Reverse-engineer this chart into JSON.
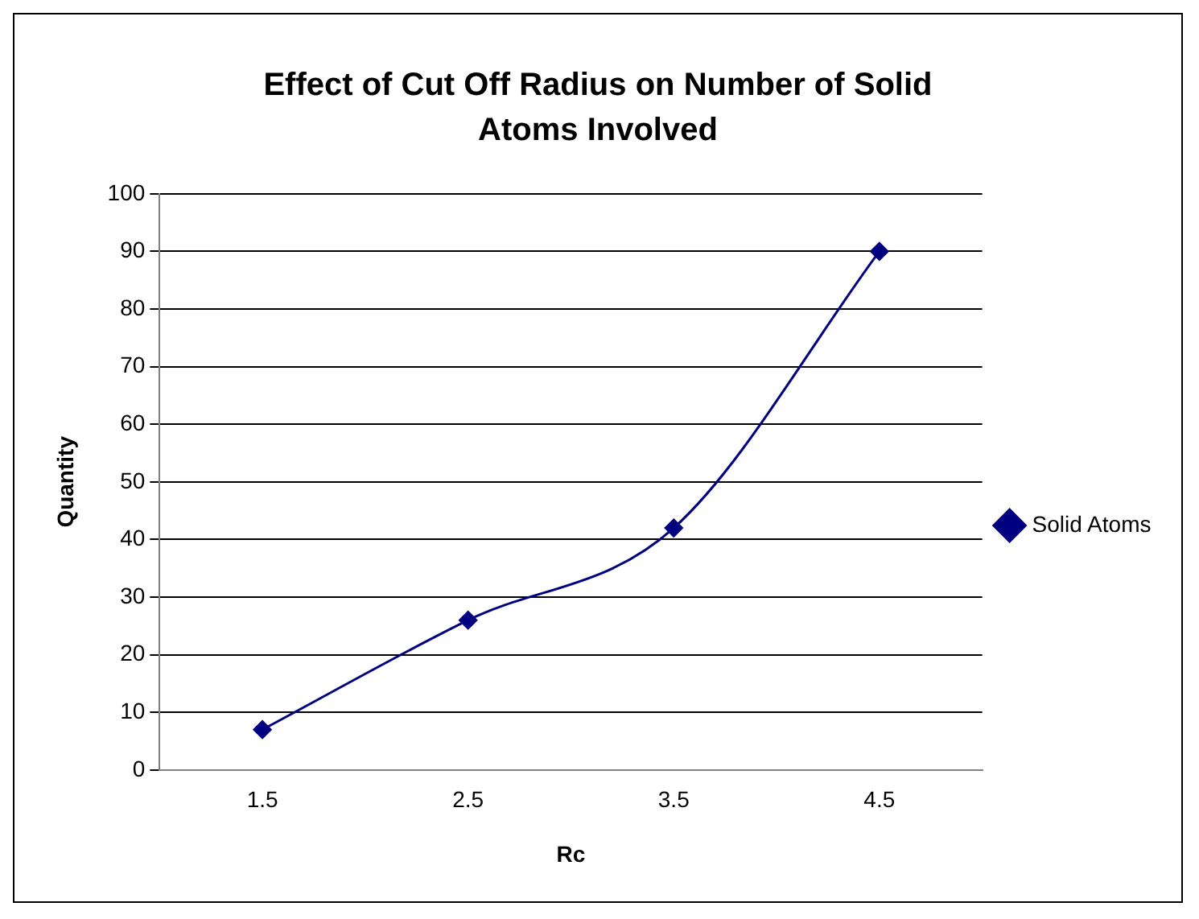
{
  "chart_data": {
    "type": "line",
    "title": "Effect of Cut Off Radius on Number of Solid Atoms Involved",
    "xlabel": "Rc",
    "ylabel": "Quantity",
    "categories": [
      "1.5",
      "2.5",
      "3.5",
      "4.5"
    ],
    "series": [
      {
        "name": "Solid Atoms",
        "color": "#000080",
        "values": [
          7,
          26,
          42,
          90
        ]
      }
    ],
    "ylim": [
      0,
      100
    ],
    "yticks": [
      0,
      10,
      20,
      30,
      40,
      50,
      60,
      70,
      80,
      90,
      100
    ],
    "grid": "y",
    "legend": "right",
    "marker": "diamond",
    "line_style": "solid"
  }
}
